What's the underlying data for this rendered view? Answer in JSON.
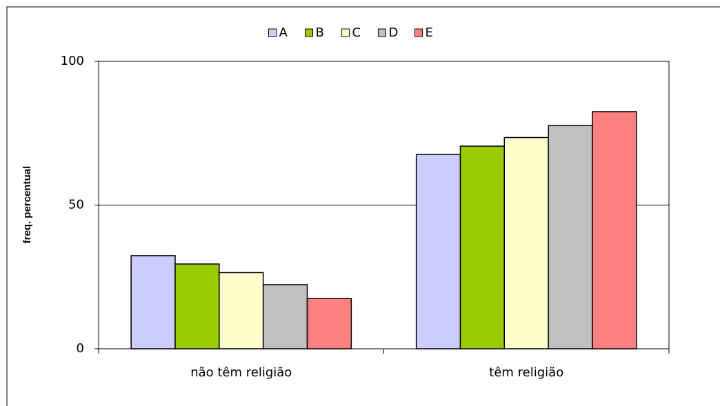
{
  "chart_data": {
    "type": "bar",
    "categories": [
      "não têm religião",
      "têm religião"
    ],
    "series": [
      {
        "name": "A",
        "color": "#ccccff",
        "values": [
          32.4,
          67.6
        ]
      },
      {
        "name": "B",
        "color": "#99cc00",
        "values": [
          29.5,
          70.5
        ]
      },
      {
        "name": "C",
        "color": "#ffffcc",
        "values": [
          26.5,
          73.5
        ]
      },
      {
        "name": "D",
        "color": "#c0c0c0",
        "values": [
          22.3,
          77.7
        ]
      },
      {
        "name": "E",
        "color": "#ff8080",
        "values": [
          17.5,
          82.5
        ]
      }
    ],
    "y_label": "freq. percentual",
    "ylim": [
      0,
      100
    ],
    "yticks": [
      0,
      50,
      100
    ],
    "grid": true,
    "legend": "top"
  }
}
